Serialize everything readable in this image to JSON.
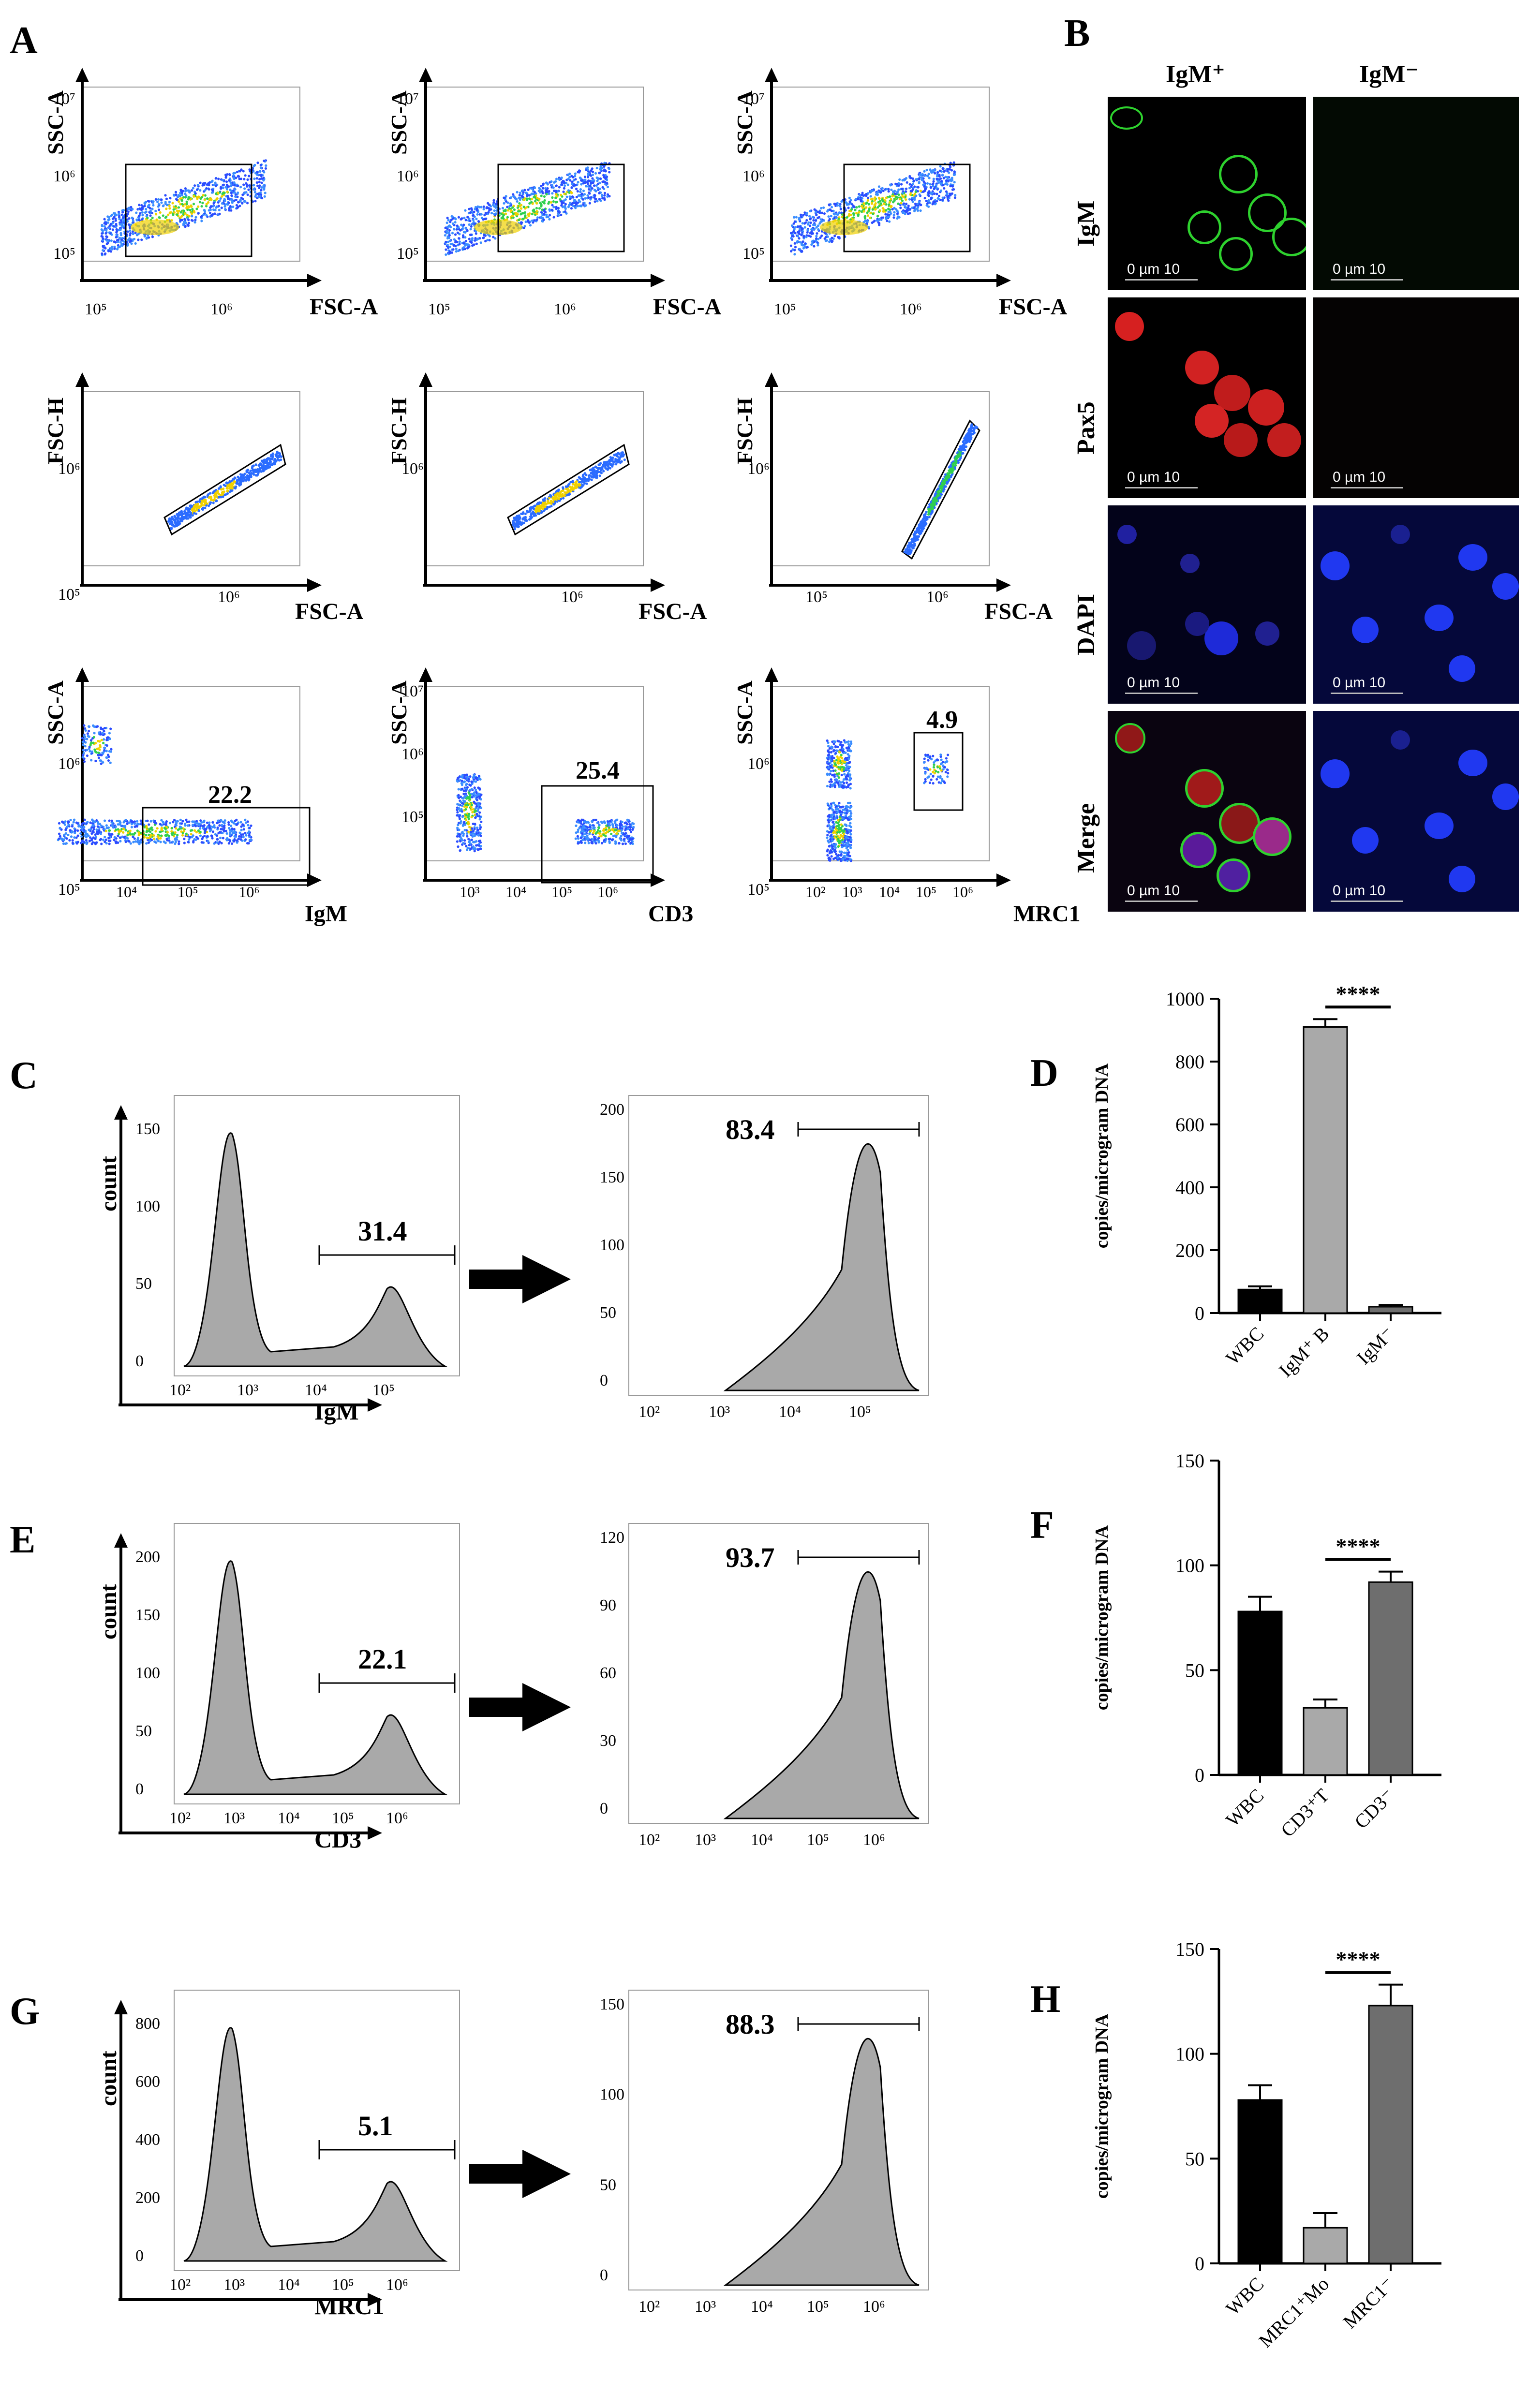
{
  "panel_labels": {
    "A": "A",
    "B": "B",
    "C": "C",
    "D": "D",
    "E": "E",
    "F": "F",
    "G": "G",
    "H": "H"
  },
  "panel_a": {
    "row1": {
      "ylabel": "SSC-A",
      "xlabel": "FSC-A",
      "yticks": [
        "10⁷",
        "10⁶",
        "10⁵"
      ],
      "xticks": [
        "10⁵",
        "10⁶"
      ]
    },
    "row2": {
      "ylabel": "FSC-H",
      "xlabel": "FSC-A",
      "plot1": {
        "yticks": [
          "10⁶",
          "10⁵"
        ],
        "xticks": [
          "10⁶"
        ]
      },
      "plot2": {
        "yticks": [
          "10⁶"
        ],
        "xticks": [
          "10⁶"
        ]
      },
      "plot3": {
        "yticks": [
          "10⁶"
        ],
        "xticks": [
          "10⁵",
          "10⁶"
        ]
      }
    },
    "row3": {
      "ylabel": "SSC-A",
      "plot1": {
        "xlabel": "IgM",
        "value": "22.2",
        "yticks": [
          "10⁶",
          "10⁵"
        ],
        "xticks": [
          "10⁴",
          "10⁵",
          "10⁶"
        ]
      },
      "plot2": {
        "xlabel": "CD3",
        "value": "25.4",
        "yticks": [
          "10⁷",
          "10⁶",
          "10⁵"
        ],
        "xticks": [
          "10³",
          "10⁴",
          "10⁵",
          "10⁶"
        ]
      },
      "plot3": {
        "xlabel": "MRC1",
        "value": "4.9",
        "yticks": [
          "10⁶",
          "10⁵"
        ],
        "xticks": [
          "10²",
          "10³",
          "10⁴",
          "10⁵",
          "10⁶"
        ]
      }
    }
  },
  "panel_b": {
    "col_headers": [
      "IgM⁺",
      "IgM⁻"
    ],
    "row_labels": [
      "IgM",
      "Pax5",
      "DAPI",
      "Merge"
    ],
    "scale_bar": "0   µm  10"
  },
  "histograms": {
    "count_label": "count",
    "C": {
      "xlabel": "IgM",
      "left_value": "31.4",
      "right_value": "83.4",
      "left_yticks": [
        "150",
        "100",
        "50",
        "0"
      ],
      "right_yticks": [
        "200",
        "150",
        "100",
        "50",
        "0"
      ],
      "xticks": [
        "10²",
        "10³",
        "10⁴",
        "10⁵"
      ]
    },
    "E": {
      "xlabel": "CD3",
      "left_value": "22.1",
      "right_value": "93.7",
      "left_yticks": [
        "200",
        "150",
        "100",
        "50",
        "0"
      ],
      "right_yticks": [
        "120",
        "90",
        "60",
        "30",
        "0"
      ],
      "xticks": [
        "10²",
        "10³",
        "10⁴",
        "10⁵",
        "10⁶"
      ]
    },
    "G": {
      "xlabel": "MRC1",
      "left_value": "5.1",
      "right_value": "88.3",
      "left_yticks": [
        "800",
        "600",
        "400",
        "200",
        "0"
      ],
      "right_yticks": [
        "150",
        "100",
        "50",
        "0"
      ],
      "xticks": [
        "10²",
        "10³",
        "10⁴",
        "10⁵",
        "10⁶"
      ]
    }
  },
  "chart_data": [
    {
      "panel": "D",
      "type": "bar",
      "ylabel": "copies/microgram DNA",
      "categories": [
        "WBC",
        "IgM⁺ B",
        "IgM⁻"
      ],
      "values": [
        75,
        910,
        20
      ],
      "errors": [
        10,
        25,
        6
      ],
      "ylim": [
        0,
        1000
      ],
      "yticks": [
        "0",
        "200",
        "400",
        "600",
        "800",
        "1000"
      ],
      "significance": "****",
      "colors": [
        "#000000",
        "#a9a9a9",
        "#6e6e6e"
      ]
    },
    {
      "panel": "F",
      "type": "bar",
      "ylabel": "copies/microgram DNA",
      "categories": [
        "WBC",
        "CD3⁺T",
        "CD3⁻"
      ],
      "values": [
        78,
        32,
        92
      ],
      "errors": [
        7,
        4,
        5
      ],
      "ylim": [
        0,
        150
      ],
      "yticks": [
        "0",
        "50",
        "100",
        "150"
      ],
      "significance": "****",
      "colors": [
        "#000000",
        "#a9a9a9",
        "#6e6e6e"
      ]
    },
    {
      "panel": "H",
      "type": "bar",
      "ylabel": "copies/microgram DNA",
      "categories": [
        "WBC",
        "MRC1⁺Mo",
        "MRC1⁻"
      ],
      "values": [
        78,
        17,
        123
      ],
      "errors": [
        7,
        7,
        10
      ],
      "ylim": [
        0,
        150
      ],
      "yticks": [
        "0",
        "50",
        "100",
        "150"
      ],
      "significance": "****",
      "colors": [
        "#000000",
        "#a9a9a9",
        "#6e6e6e"
      ]
    }
  ]
}
